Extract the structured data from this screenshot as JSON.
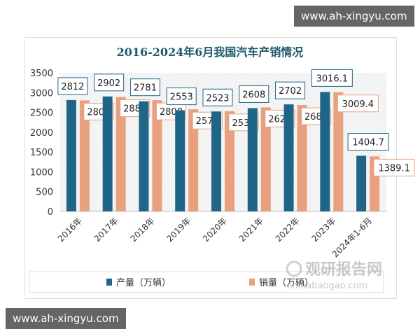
{
  "watermarks": {
    "top": "www.ah-xingyu.com",
    "bottom": "www.ah-xingyu.com",
    "logo_cn": "观研报告网",
    "logo_en": "chinabaogao.com"
  },
  "chart_data": {
    "type": "bar",
    "title": "2016-2024年6月我国汽车产销情况",
    "categories": [
      "2016年",
      "2017年",
      "2018年",
      "2019年",
      "2020年",
      "2021年",
      "2022年",
      "2023年",
      "2024年1-6月"
    ],
    "series": [
      {
        "name": "产量（万辆）",
        "color": "#1f6587",
        "values": [
          2812,
          2902,
          2781,
          2553,
          2523,
          2608,
          2702,
          3016.1,
          1404.7
        ]
      },
      {
        "name": "销量（万辆）",
        "color": "#e9a07e",
        "values": [
          2803,
          2888,
          2808,
          2577,
          2531,
          2627,
          2686,
          3009.4,
          1389.1
        ]
      }
    ],
    "ylim": [
      0,
      3500
    ],
    "yticks": [
      0,
      500,
      1000,
      1500,
      2000,
      2500,
      3000,
      3500
    ],
    "grid": false,
    "legend": "bottom"
  }
}
